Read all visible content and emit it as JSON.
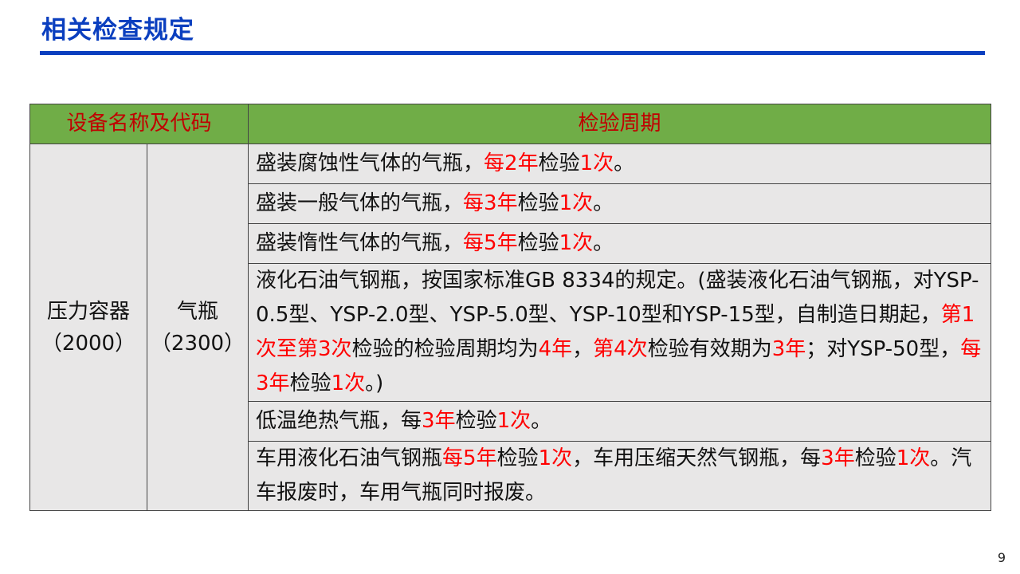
{
  "title": "相关检查规定",
  "table": {
    "headers": [
      "设备名称及代码",
      "检验周期"
    ],
    "category": {
      "name": "压力容器",
      "code": "（2000）"
    },
    "subcategory": {
      "name": "气瓶",
      "code": "（2300）"
    },
    "rows": [
      [
        {
          "t": "盛装腐蚀性气体的气瓶，"
        },
        {
          "t": "每2年",
          "red": true
        },
        {
          "t": "检验"
        },
        {
          "t": "1次",
          "red": true
        },
        {
          "t": "。"
        }
      ],
      [
        {
          "t": "盛装一般气体的气瓶，"
        },
        {
          "t": "每3年",
          "red": true
        },
        {
          "t": "检验"
        },
        {
          "t": "1次",
          "red": true
        },
        {
          "t": "。"
        }
      ],
      [
        {
          "t": "盛装惰性气体的气瓶，"
        },
        {
          "t": "每5年",
          "red": true
        },
        {
          "t": "检验"
        },
        {
          "t": "1次",
          "red": true
        },
        {
          "t": "。"
        }
      ],
      [
        {
          "t": "液化石油气钢瓶，按国家标准GB 8334的规定。(盛装液化石油气钢瓶，对YSP-0.5型、YSP-2.0型、YSP-5.0型、YSP-10型和YSP-15型，自制造日期起，"
        },
        {
          "t": "第1次至第3次",
          "red": true
        },
        {
          "t": "检验的检验周期均为"
        },
        {
          "t": "4年",
          "red": true
        },
        {
          "t": "，"
        },
        {
          "t": "第4次",
          "red": true
        },
        {
          "t": "检验有效期为"
        },
        {
          "t": "3年",
          "red": true
        },
        {
          "t": "；对YSP-50型，"
        },
        {
          "t": "每3年",
          "red": true
        },
        {
          "t": "检验"
        },
        {
          "t": "1次",
          "red": true
        },
        {
          "t": "。)"
        }
      ],
      [
        {
          "t": "低温绝热气瓶，每"
        },
        {
          "t": "3年",
          "red": true
        },
        {
          "t": "检验"
        },
        {
          "t": "1次",
          "red": true
        },
        {
          "t": "。"
        }
      ],
      [
        {
          "t": "车用液化石油气钢瓶"
        },
        {
          "t": "每5年",
          "red": true
        },
        {
          "t": "检验"
        },
        {
          "t": "1次",
          "red": true
        },
        {
          "t": "，车用压缩天然气钢瓶，每"
        },
        {
          "t": "3年",
          "red": true
        },
        {
          "t": "检验"
        },
        {
          "t": "1次",
          "red": true
        },
        {
          "t": "。汽车报废时，车用气瓶同时报废。"
        }
      ]
    ]
  },
  "page_number": "9",
  "colors": {
    "title": "#0b3fbf",
    "header_bg": "#70ad47",
    "header_text": "#c00000",
    "highlight": "#ff0000",
    "cell_bg": "#e8e7e7"
  }
}
